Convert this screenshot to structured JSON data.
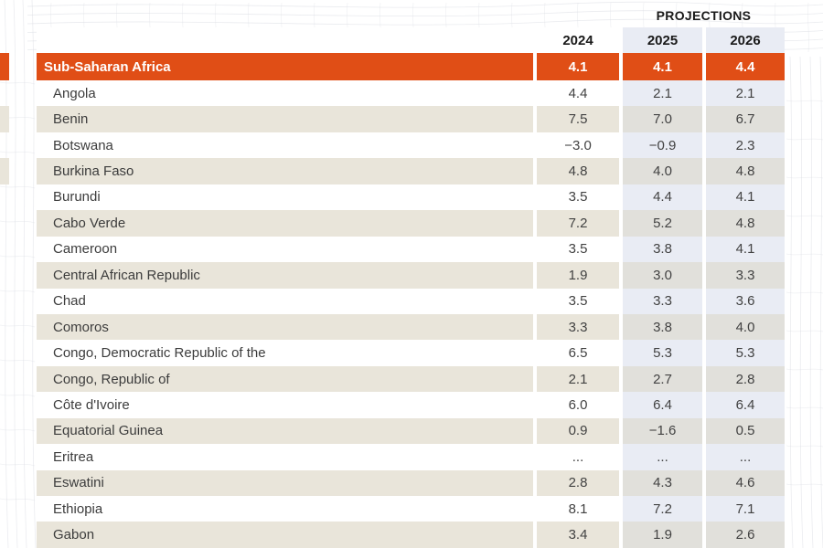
{
  "header": {
    "projections_label": "PROJECTIONS",
    "years": [
      "2024",
      "2025",
      "2026"
    ]
  },
  "table": {
    "region_row": {
      "name": "Sub-Saharan Africa",
      "values": [
        "4.1",
        "4.1",
        "4.4"
      ]
    },
    "rows": [
      {
        "name": "Angola",
        "values": [
          "4.4",
          "2.1",
          "2.1"
        ]
      },
      {
        "name": "Benin",
        "values": [
          "7.5",
          "7.0",
          "6.7"
        ]
      },
      {
        "name": "Botswana",
        "values": [
          "−3.0",
          "−0.9",
          "2.3"
        ]
      },
      {
        "name": "Burkina Faso",
        "values": [
          "4.8",
          "4.0",
          "4.8"
        ]
      },
      {
        "name": "Burundi",
        "values": [
          "3.5",
          "4.4",
          "4.1"
        ]
      },
      {
        "name": "Cabo Verde",
        "values": [
          "7.2",
          "5.2",
          "4.8"
        ]
      },
      {
        "name": "Cameroon",
        "values": [
          "3.5",
          "3.8",
          "4.1"
        ]
      },
      {
        "name": "Central African Republic",
        "values": [
          "1.9",
          "3.0",
          "3.3"
        ]
      },
      {
        "name": "Chad",
        "values": [
          "3.5",
          "3.3",
          "3.6"
        ]
      },
      {
        "name": "Comoros",
        "values": [
          "3.3",
          "3.8",
          "4.0"
        ]
      },
      {
        "name": "Congo, Democratic Republic of the",
        "values": [
          "6.5",
          "5.3",
          "5.3"
        ]
      },
      {
        "name": "Congo, Republic of",
        "values": [
          "2.1",
          "2.7",
          "2.8"
        ]
      },
      {
        "name": "Côte d'Ivoire",
        "values": [
          "6.0",
          "6.4",
          "6.4"
        ]
      },
      {
        "name": "Equatorial Guinea",
        "values": [
          "0.9",
          "−1.6",
          "0.5"
        ]
      },
      {
        "name": "Eritrea",
        "values": [
          "...",
          "...",
          "..."
        ]
      },
      {
        "name": "Eswatini",
        "values": [
          "2.8",
          "4.3",
          "4.6"
        ]
      },
      {
        "name": "Ethiopia",
        "values": [
          "8.1",
          "7.2",
          "7.1"
        ]
      },
      {
        "name": "Gabon",
        "values": [
          "3.4",
          "1.9",
          "2.6"
        ]
      }
    ]
  },
  "colors": {
    "accent_orange": "#E04E16",
    "row_beige": "#E9E5DA",
    "projection_tint": "#E9ECF4",
    "projection_tint_on_beige": "#E1E0DB",
    "text_dark": "#3C3C3C"
  }
}
